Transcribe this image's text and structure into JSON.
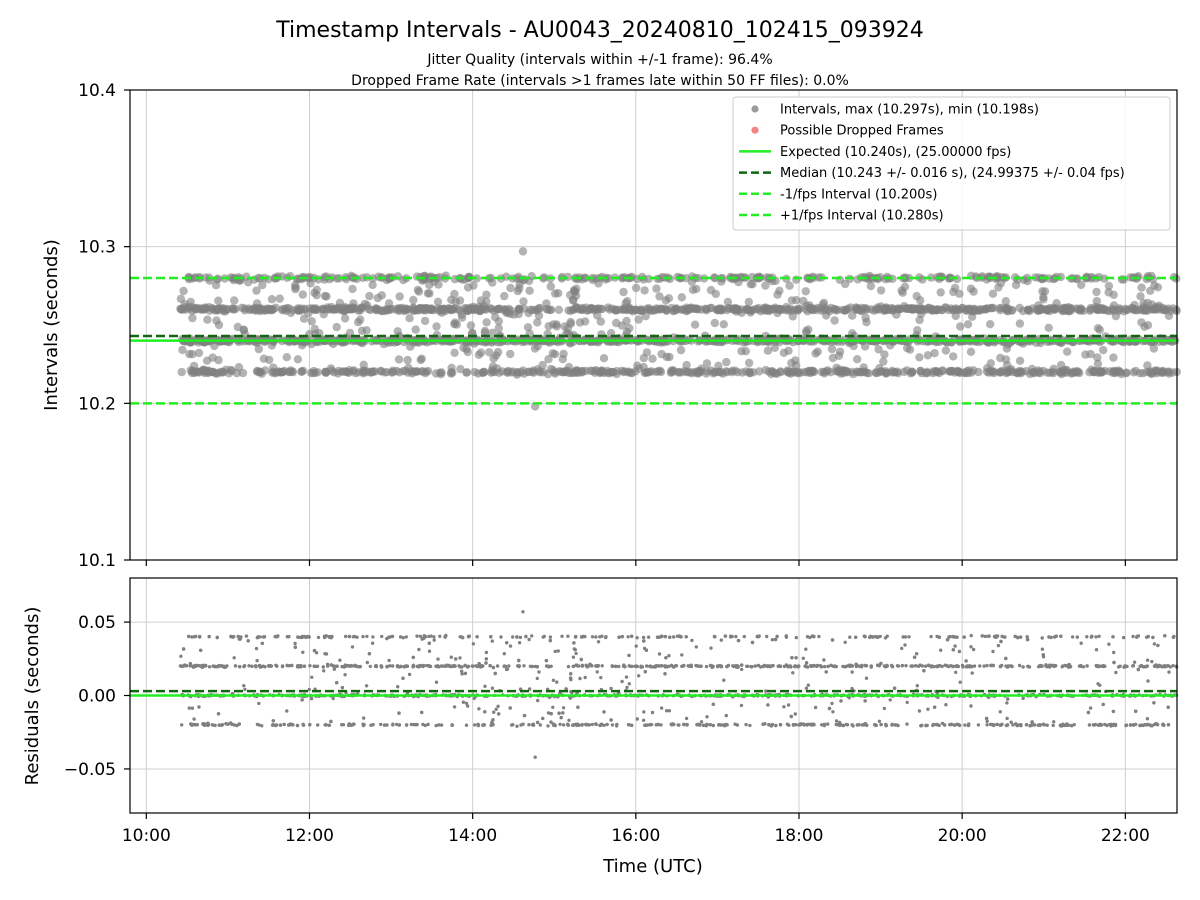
{
  "chart_data": [
    {
      "type": "scatter",
      "panel": "intervals",
      "title": "Timestamp Intervals - AU0043_20240810_102415_093924",
      "subtitle_lines": [
        "Jitter Quality (intervals within +/-1 frame): 96.4%",
        "Dropped Frame Rate (intervals >1 frames late within 50 FF files): 0.0%"
      ],
      "ylabel": "Intervals (seconds)",
      "xlabel": "",
      "xlim": [
        "09:48",
        "22:38"
      ],
      "ylim": [
        10.1,
        10.4
      ],
      "yticks": [
        "10.1",
        "10.2",
        "10.3",
        "10.4"
      ],
      "xticks": [
        "10:00",
        "12:00",
        "14:00",
        "16:00",
        "18:00",
        "20:00",
        "22:00"
      ],
      "grid": true,
      "legend_position": "top-right",
      "time_span": [
        "10:25",
        "22:38"
      ],
      "series": [
        {
          "name": "Intervals, max (10.297s), min (10.198s)",
          "kind": "points",
          "color": "#808080",
          "bands": [
            10.22,
            10.24,
            10.26,
            10.28
          ],
          "max": 10.297,
          "min": 10.198
        },
        {
          "name": "Possible Dropped Frames",
          "kind": "points",
          "color": "#ee6666",
          "values": []
        },
        {
          "name": "Expected (10.240s), (25.00000 fps)",
          "kind": "hline",
          "value": 10.24,
          "color": "#22ee22",
          "style": "solid"
        },
        {
          "name": "Median (10.243 +/- 0.016 s), (24.99375 +/- 0.04 fps)",
          "kind": "hline",
          "value": 10.243,
          "color": "#116611",
          "style": "dashed"
        },
        {
          "name": "-1/fps Interval (10.200s)",
          "kind": "hline",
          "value": 10.2,
          "color": "#22ee22",
          "style": "dashed"
        },
        {
          "name": "+1/fps Interval (10.280s)",
          "kind": "hline",
          "value": 10.28,
          "color": "#22ee22",
          "style": "dashed"
        }
      ]
    },
    {
      "type": "scatter",
      "panel": "residuals",
      "title": "",
      "ylabel": "Residuals (seconds)",
      "xlabel": "Time (UTC)",
      "xlim": [
        "09:48",
        "22:38"
      ],
      "ylim": [
        -0.08,
        0.08
      ],
      "yticks": [
        "0.05",
        "0.00",
        "−0.05"
      ],
      "ytick_values": [
        0.05,
        0.0,
        -0.05
      ],
      "xticks": [
        "10:00",
        "12:00",
        "14:00",
        "16:00",
        "18:00",
        "20:00",
        "22:00"
      ],
      "grid": true,
      "series": [
        {
          "name": "",
          "kind": "points",
          "color": "#808080",
          "bands": [
            -0.02,
            0.0,
            0.02,
            0.04
          ],
          "max": 0.057,
          "min": -0.042
        },
        {
          "name": "",
          "kind": "hline",
          "value": 0.0,
          "color": "#22ee22",
          "style": "solid"
        },
        {
          "name": "",
          "kind": "hline",
          "value": 0.003,
          "color": "#116611",
          "style": "dashed"
        }
      ]
    }
  ]
}
